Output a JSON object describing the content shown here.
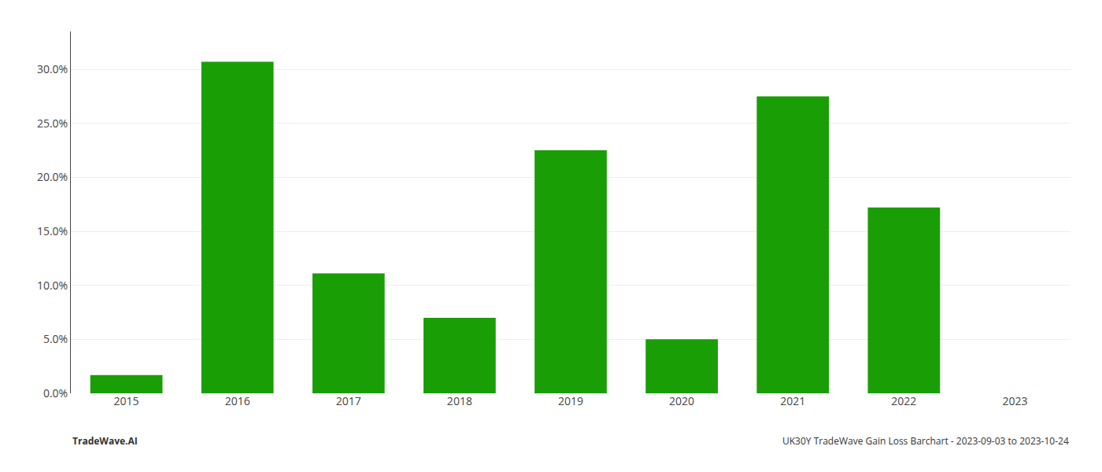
{
  "chart_data": {
    "type": "bar",
    "categories": [
      "2015",
      "2016",
      "2017",
      "2018",
      "2019",
      "2020",
      "2021",
      "2022",
      "2023"
    ],
    "values": [
      0.017,
      0.307,
      0.111,
      0.07,
      0.225,
      0.05,
      0.275,
      0.172,
      0.0
    ],
    "color": "#1a9e06",
    "ylim": [
      0,
      0.335
    ],
    "yticks": [
      {
        "value": 0.0,
        "label": "0.0%"
      },
      {
        "value": 0.05,
        "label": "5.0%"
      },
      {
        "value": 0.1,
        "label": "10.0%"
      },
      {
        "value": 0.15,
        "label": "15.0%"
      },
      {
        "value": 0.2,
        "label": "20.0%"
      },
      {
        "value": 0.25,
        "label": "25.0%"
      },
      {
        "value": 0.3,
        "label": "30.0%"
      }
    ],
    "grid": true,
    "annotations": [
      "TradeWave.AI",
      "UK30Y TradeWave Gain Loss Barchart - 2023-09-03 to 2023-10-24"
    ]
  }
}
